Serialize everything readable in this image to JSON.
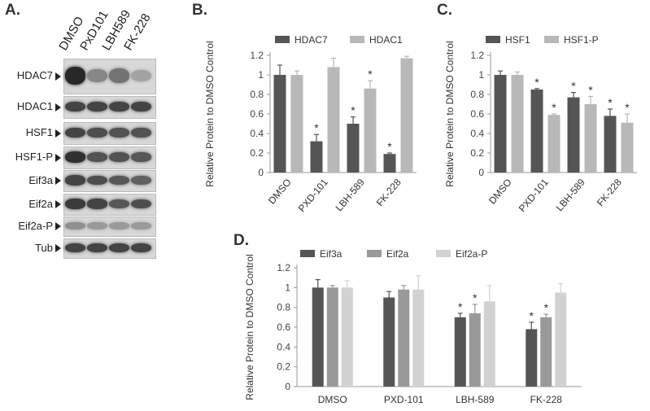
{
  "panels": {
    "a": "A.",
    "b": "B.",
    "c": "C.",
    "d": "D."
  },
  "blot": {
    "lanes": [
      "DMSO",
      "PxD101",
      "LBH589",
      "FK-228"
    ],
    "rows": [
      {
        "label": "HDAC7",
        "intensity": [
          0.95,
          0.45,
          0.55,
          0.3
        ]
      },
      {
        "label": "HDAC1",
        "intensity": [
          0.8,
          0.8,
          0.8,
          0.8
        ]
      },
      {
        "label": "HSF1",
        "intensity": [
          0.8,
          0.75,
          0.72,
          0.72
        ]
      },
      {
        "label": "HSF1-P",
        "intensity": [
          0.9,
          0.72,
          0.72,
          0.7
        ]
      },
      {
        "label": "Eif3a",
        "intensity": [
          0.8,
          0.75,
          0.7,
          0.65
        ]
      },
      {
        "label": "Eif2a",
        "intensity": [
          0.85,
          0.8,
          0.7,
          0.75
        ]
      },
      {
        "label": "Eif2a-P",
        "intensity": [
          0.4,
          0.35,
          0.35,
          0.35
        ]
      },
      {
        "label": "Tub",
        "intensity": [
          0.8,
          0.8,
          0.8,
          0.8
        ]
      }
    ]
  },
  "chart_data": [
    {
      "type": "bar",
      "panel": "B.",
      "categories": [
        "DMSO",
        "PXD-101",
        "LBH-589",
        "FK-228"
      ],
      "series": [
        {
          "name": "HDAC7",
          "color": "#555555",
          "values": [
            1.0,
            0.32,
            0.5,
            0.19
          ],
          "errors": [
            0.1,
            0.07,
            0.07,
            0.01
          ],
          "significant": [
            false,
            true,
            true,
            true
          ]
        },
        {
          "name": "HDAC1",
          "color": "#b8b8b8",
          "values": [
            1.0,
            1.08,
            0.86,
            1.17
          ],
          "errors": [
            0.04,
            0.09,
            0.08,
            0.02
          ],
          "significant": [
            false,
            false,
            true,
            false
          ]
        }
      ],
      "ylabel": "Relative Protein to DMSO Control",
      "ylim": [
        0,
        1.2
      ],
      "yticks": [
        "0",
        "0.2",
        "0.4",
        "0.6",
        "0.8",
        "1",
        "1.2"
      ],
      "legend": "top",
      "grid": false,
      "significance_mark": "*"
    },
    {
      "type": "bar",
      "panel": "C.",
      "categories": [
        "DMSO",
        "PXD-101",
        "LBH-589",
        "FK-228"
      ],
      "series": [
        {
          "name": "HSF1",
          "color": "#555555",
          "values": [
            1.0,
            0.85,
            0.77,
            0.58
          ],
          "errors": [
            0.04,
            0.01,
            0.05,
            0.07
          ],
          "significant": [
            false,
            true,
            true,
            true
          ]
        },
        {
          "name": "HSF1-P",
          "color": "#b8b8b8",
          "values": [
            1.0,
            0.59,
            0.7,
            0.51
          ],
          "errors": [
            0.03,
            0.01,
            0.08,
            0.09
          ],
          "significant": [
            false,
            true,
            true,
            true
          ]
        }
      ],
      "ylabel": "Relative Protein to DMSO Control",
      "ylim": [
        0,
        1.2
      ],
      "yticks": [
        "0",
        "0.2",
        "0.4",
        "0.6",
        "0.8",
        "1",
        "1.2"
      ],
      "legend": "top",
      "grid": false,
      "significance_mark": "*"
    },
    {
      "type": "bar",
      "panel": "D.",
      "categories": [
        "DMSO",
        "PXD-101",
        "LBH-589",
        "FK-228"
      ],
      "series": [
        {
          "name": "Eif3a",
          "color": "#555555",
          "values": [
            1.0,
            0.9,
            0.7,
            0.58
          ],
          "errors": [
            0.08,
            0.06,
            0.04,
            0.07
          ],
          "significant": [
            false,
            false,
            true,
            true
          ]
        },
        {
          "name": "Eif2a",
          "color": "#999999",
          "values": [
            1.0,
            0.98,
            0.74,
            0.7
          ],
          "errors": [
            0.02,
            0.04,
            0.09,
            0.03
          ],
          "significant": [
            false,
            false,
            true,
            true
          ]
        },
        {
          "name": "Eif2a-P",
          "color": "#d2d2d2",
          "values": [
            1.0,
            0.98,
            0.86,
            0.95
          ],
          "errors": [
            0.07,
            0.14,
            0.16,
            0.09
          ],
          "significant": [
            false,
            false,
            false,
            false
          ]
        }
      ],
      "ylabel": "Relative Protein to DMSO Control",
      "ylim": [
        0,
        1.2
      ],
      "yticks": [
        "0",
        "0.2",
        "0.4",
        "0.6",
        "0.8",
        "1",
        "1.2"
      ],
      "legend": "top",
      "grid": false,
      "significance_mark": "*"
    }
  ]
}
